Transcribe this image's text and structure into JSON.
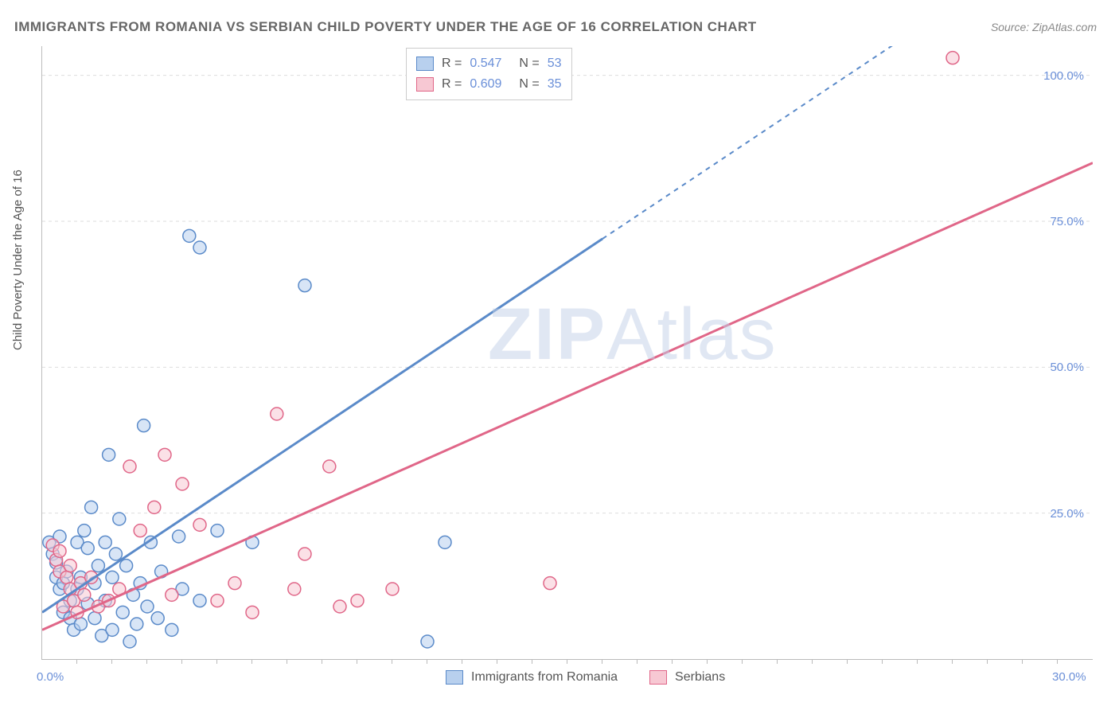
{
  "title": "IMMIGRANTS FROM ROMANIA VS SERBIAN CHILD POVERTY UNDER THE AGE OF 16 CORRELATION CHART",
  "source_label": "Source: ZipAtlas.com",
  "yaxis_label": "Child Poverty Under the Age of 16",
  "watermark": {
    "part1": "ZIP",
    "part2": "Atlas"
  },
  "chart": {
    "type": "scatter",
    "xlim": [
      0,
      30
    ],
    "ylim": [
      0,
      105
    ],
    "xticks": [
      0,
      30
    ],
    "xtick_labels": [
      "0.0%",
      "30.0%"
    ],
    "xtick_minor": [
      1,
      2,
      3,
      4,
      5,
      6,
      7,
      8,
      9,
      10,
      11,
      12,
      13,
      14,
      15,
      16,
      17,
      18,
      19,
      20,
      21,
      22,
      23,
      24,
      25,
      26,
      27,
      28,
      29
    ],
    "yticks": [
      25,
      50,
      75,
      100
    ],
    "ytick_labels": [
      "25.0%",
      "50.0%",
      "75.0%",
      "100.0%"
    ],
    "background_color": "#ffffff",
    "grid_color": "#dddddd",
    "axis_color": "#bbbbbb",
    "marker_radius": 8,
    "marker_stroke_width": 1.5,
    "trendline_width": 3,
    "series": [
      {
        "name": "Immigrants from Romania",
        "label_key": "legend.series1",
        "color_fill": "#b8d0ee",
        "color_stroke": "#5a8ac9",
        "r": 0.547,
        "n": 53,
        "trend": {
          "x1": 0,
          "y1": 8,
          "x2": 16,
          "y2": 72,
          "dash_x2": 24.5,
          "dash_y2": 106
        },
        "points": [
          [
            0.2,
            20
          ],
          [
            0.3,
            18
          ],
          [
            0.4,
            16.5
          ],
          [
            0.4,
            14
          ],
          [
            0.5,
            12
          ],
          [
            0.5,
            21
          ],
          [
            0.6,
            13
          ],
          [
            0.6,
            8
          ],
          [
            0.7,
            15
          ],
          [
            0.8,
            10
          ],
          [
            0.8,
            7
          ],
          [
            0.9,
            5
          ],
          [
            1.0,
            20
          ],
          [
            1.0,
            12
          ],
          [
            1.1,
            14
          ],
          [
            1.1,
            6
          ],
          [
            1.2,
            22
          ],
          [
            1.3,
            19
          ],
          [
            1.3,
            9.5
          ],
          [
            1.4,
            26
          ],
          [
            1.5,
            13
          ],
          [
            1.5,
            7
          ],
          [
            1.6,
            16
          ],
          [
            1.7,
            4
          ],
          [
            1.8,
            20
          ],
          [
            1.8,
            10
          ],
          [
            1.9,
            35
          ],
          [
            2.0,
            14
          ],
          [
            2.0,
            5
          ],
          [
            2.1,
            18
          ],
          [
            2.2,
            24
          ],
          [
            2.3,
            8
          ],
          [
            2.4,
            16
          ],
          [
            2.5,
            3
          ],
          [
            2.6,
            11
          ],
          [
            2.7,
            6
          ],
          [
            2.8,
            13
          ],
          [
            2.9,
            40
          ],
          [
            3.0,
            9
          ],
          [
            3.1,
            20
          ],
          [
            3.3,
            7
          ],
          [
            3.4,
            15
          ],
          [
            3.7,
            5
          ],
          [
            3.9,
            21
          ],
          [
            4.0,
            12
          ],
          [
            4.2,
            72.5
          ],
          [
            4.5,
            70.5
          ],
          [
            4.5,
            10
          ],
          [
            5.0,
            22
          ],
          [
            6.0,
            20
          ],
          [
            7.5,
            64
          ],
          [
            11.0,
            3
          ],
          [
            11.5,
            20
          ]
        ]
      },
      {
        "name": "Serbians",
        "label_key": "legend.series2",
        "color_fill": "#f7c8d3",
        "color_stroke": "#e06688",
        "r": 0.609,
        "n": 35,
        "trend": {
          "x1": 0,
          "y1": 5,
          "x2": 30,
          "y2": 85
        },
        "points": [
          [
            0.3,
            19.5
          ],
          [
            0.4,
            17
          ],
          [
            0.5,
            15
          ],
          [
            0.5,
            18.5
          ],
          [
            0.6,
            9
          ],
          [
            0.7,
            14
          ],
          [
            0.8,
            12
          ],
          [
            0.8,
            16
          ],
          [
            0.9,
            10
          ],
          [
            1.0,
            8
          ],
          [
            1.1,
            13
          ],
          [
            1.2,
            11
          ],
          [
            1.4,
            14
          ],
          [
            1.6,
            9
          ],
          [
            1.9,
            10
          ],
          [
            2.2,
            12
          ],
          [
            2.5,
            33
          ],
          [
            2.8,
            22
          ],
          [
            3.2,
            26
          ],
          [
            3.5,
            35
          ],
          [
            3.7,
            11
          ],
          [
            4.0,
            30
          ],
          [
            4.5,
            23
          ],
          [
            5.0,
            10
          ],
          [
            5.5,
            13
          ],
          [
            6.0,
            8
          ],
          [
            6.7,
            42
          ],
          [
            7.2,
            12
          ],
          [
            7.5,
            18
          ],
          [
            8.2,
            33
          ],
          [
            8.5,
            9
          ],
          [
            9.0,
            10
          ],
          [
            10.0,
            12
          ],
          [
            14.5,
            13
          ],
          [
            26.0,
            103
          ]
        ]
      }
    ]
  },
  "legend": {
    "series1": "Immigrants from Romania",
    "series2": "Serbians",
    "r_label": "R =",
    "n_label": "N =",
    "r1": "0.547",
    "n1": "53",
    "r2": "0.609",
    "n2": "35"
  },
  "colors": {
    "title": "#666666",
    "source": "#888888",
    "axis_text": "#6a8fd8",
    "label_text": "#555555",
    "watermark": "#c2d0e8"
  },
  "fonts": {
    "title_size": 17,
    "tick_size": 15,
    "legend_size": 16,
    "watermark_size": 92
  }
}
